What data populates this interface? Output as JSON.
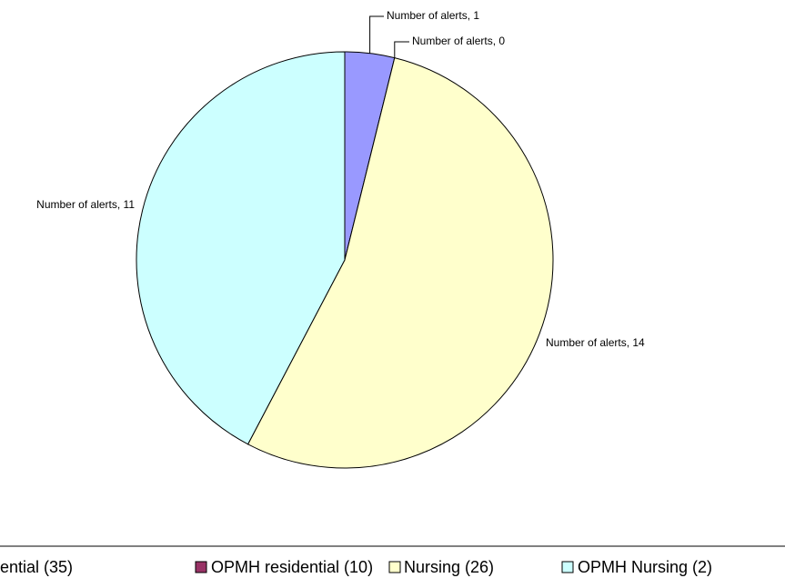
{
  "chart_data": {
    "type": "pie",
    "categories": [
      "ential (35)",
      "OPMH residential (10)",
      "Nursing (26)",
      "OPMH Nursing (2)"
    ],
    "values": [
      1,
      0,
      14,
      11
    ],
    "value_labels": [
      "Number of alerts, 1",
      "Number of alerts, 0",
      "Number of alerts, 14",
      "Number of alerts, 11"
    ],
    "colors": [
      "#9999ff",
      "#993366",
      "#ffffcc",
      "#ccffff"
    ],
    "legend": "bottom"
  }
}
